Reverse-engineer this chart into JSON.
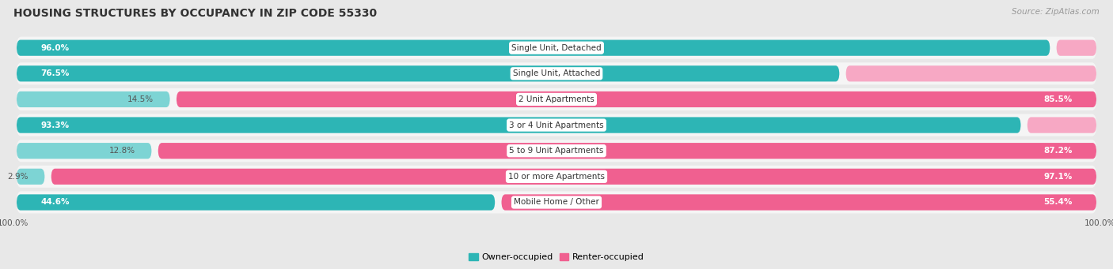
{
  "title": "HOUSING STRUCTURES BY OCCUPANCY IN ZIP CODE 55330",
  "source": "Source: ZipAtlas.com",
  "categories": [
    "Single Unit, Detached",
    "Single Unit, Attached",
    "2 Unit Apartments",
    "3 or 4 Unit Apartments",
    "5 to 9 Unit Apartments",
    "10 or more Apartments",
    "Mobile Home / Other"
  ],
  "owner_pct": [
    96.0,
    76.5,
    14.5,
    93.3,
    12.8,
    2.9,
    44.6
  ],
  "renter_pct": [
    4.0,
    23.5,
    85.5,
    6.7,
    87.2,
    97.1,
    55.4
  ],
  "owner_color_strong": "#2db5b5",
  "owner_color_light": "#7dd4d4",
  "renter_color_strong": "#f06090",
  "renter_color_light": "#f7a8c4",
  "owner_label": "Owner-occupied",
  "renter_label": "Renter-occupied",
  "bg_color": "#e8e8e8",
  "bar_bg_color": "#f5f5f5",
  "row_bg_color": "#ebebeb",
  "title_fontsize": 10,
  "label_fontsize": 7.5,
  "pct_fontsize": 7.5,
  "tick_fontsize": 7.5,
  "source_fontsize": 7.5,
  "legend_fontsize": 8
}
